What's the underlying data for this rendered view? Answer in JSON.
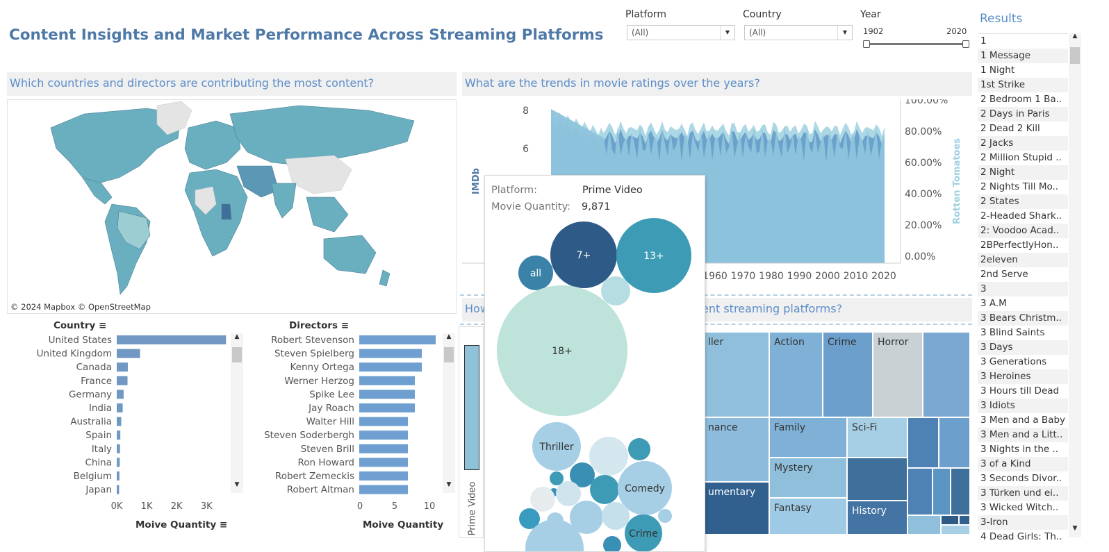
{
  "header": {
    "title": "Content Insights and Market Performance Across Streaming Platforms"
  },
  "filters": {
    "platform": {
      "label": "Platform",
      "value": "(All)"
    },
    "country": {
      "label": "Country",
      "value": "(All)"
    },
    "year": {
      "label": "Year",
      "min": "1902",
      "max": "2020"
    }
  },
  "results": {
    "title": "Results",
    "items": [
      "1",
      "1 Message",
      "1 Night",
      "1st Strike",
      "2 Bedroom 1 Ba..",
      "2 Days in Paris",
      "2 Dead 2 Kill",
      "2 Jacks",
      "2 Million Stupid ..",
      "2 Night",
      "2 Nights Till Mo..",
      "2 States",
      "2-Headed Shark..",
      "2: Voodoo Acad..",
      "2BPerfectlyHon..",
      "2eleven",
      "2nd Serve",
      "3",
      "3 A.M",
      "3 Bears Christm..",
      "3 Blind Saints",
      "3 Days",
      "3 Generations",
      "3 Heroines",
      "3 Hours till Dead",
      "3 Idiots",
      "3 Men and a Baby",
      "3 Men and a Litt..",
      "3 Nights in the ..",
      "3 of a Kind",
      "3 Seconds Divor..",
      "3 Türken und ei..",
      "3 Wicked Witch..",
      "3-Iron",
      "4 Dead Girls: Th.."
    ]
  },
  "map_section": {
    "question": "Which countries and directors are contributing the most content?",
    "attribution": "© 2024 Mapbox © OpenStreetMap"
  },
  "ratings_section": {
    "question": "What are the trends in movie ratings over the years?",
    "left_axis_label": "IMDb",
    "right_axis_label": "Rotten Tomatoes"
  },
  "lower_section": {
    "question_left": "How",
    "question_right": "ent streaming platforms?"
  },
  "side_bar": {
    "label": "Prime Video"
  },
  "tooltip": {
    "platform_label": "Platform:",
    "platform_value": "Prime Video",
    "qty_label": "Movie Quantity:",
    "qty_value": "9,871",
    "age_bubbles": [
      {
        "label": "7+",
        "color": "#2e5a87",
        "size": 3
      },
      {
        "label": "13+",
        "color": "#3e9bb5",
        "size": 3.3
      },
      {
        "label": "all",
        "color": "#3a82a8",
        "size": 1
      },
      {
        "label": "",
        "color": "#b5dde2",
        "size": 0.5
      },
      {
        "label": "18+",
        "color": "#bde3da",
        "size": 9
      }
    ],
    "genre_bubbles": [
      "Thriller",
      "Comedy",
      "Crime"
    ]
  },
  "chart_data": [
    {
      "type": "bar",
      "title": "Country",
      "xlabel": "Moive Quantity",
      "categories": [
        "United States",
        "United Kingdom",
        "Canada",
        "France",
        "Germany",
        "India",
        "Australia",
        "Spain",
        "Italy",
        "China",
        "Belgium",
        "Japan"
      ],
      "values": [
        3650,
        780,
        370,
        360,
        230,
        200,
        150,
        120,
        110,
        100,
        90,
        80
      ],
      "xlim": [
        0,
        3900
      ],
      "xticks": [
        "0K",
        "1K",
        "2K",
        "3K"
      ],
      "color": "#7098c2"
    },
    {
      "type": "bar",
      "title": "Directors",
      "xlabel": "Moive Quantity",
      "categories": [
        "Robert Stevenson",
        "Steven Spielberg",
        "Kenny Ortega",
        "Werner Herzog",
        "Spike Lee",
        "Jay Roach",
        "Walter Hill",
        "Steven Soderbergh",
        "Steven Brill",
        "Ron Howard",
        "Robert Zemeckis",
        "Robert Altman"
      ],
      "values": [
        11,
        9,
        9,
        8,
        8,
        8,
        7,
        7,
        7,
        7,
        7,
        7
      ],
      "xlim": [
        0,
        12
      ],
      "xticks": [
        "0",
        "5",
        "10"
      ],
      "color": "#6e9fd0"
    },
    {
      "type": "area",
      "xlabel": "",
      "ylabel": "IMDb",
      "y2label": "Rotten Tomatoes",
      "x_ticks": [
        "1960",
        "1970",
        "1980",
        "1990",
        "2000",
        "2010",
        "2020"
      ],
      "y_ticks": [
        "6",
        "8"
      ],
      "y2_ticks": [
        "0.00%",
        "20.00%",
        "40.00%",
        "60.00%",
        "80.00%",
        "100.00%"
      ],
      "series": [
        {
          "name": "IMDb",
          "color": "#5b95c4"
        },
        {
          "name": "Rotten Tomatoes",
          "color": "#a8d5e3"
        }
      ]
    },
    {
      "type": "heatmap",
      "cells": [
        {
          "label": "ller",
          "color": "#8fbfdb"
        },
        {
          "label": "Action",
          "color": "#7fb0d6"
        },
        {
          "label": "Crime",
          "color": "#6d9fcc"
        },
        {
          "label": "Horror",
          "color": "#c9d1d4"
        },
        {
          "label": "",
          "color": "#7aa8d2"
        },
        {
          "label": "nance",
          "color": "#8dbbdc"
        },
        {
          "label": "Family",
          "color": "#7fb0d6"
        },
        {
          "label": "Sci-Fi",
          "color": "#a6cfe6"
        },
        {
          "label": "Mystery",
          "color": "#8fbfdb"
        },
        {
          "label": "umentary",
          "color": "#31608f"
        },
        {
          "label": "Fantasy",
          "color": "#9fcae5"
        },
        {
          "label": "History",
          "color": "#4474a3"
        }
      ]
    }
  ]
}
